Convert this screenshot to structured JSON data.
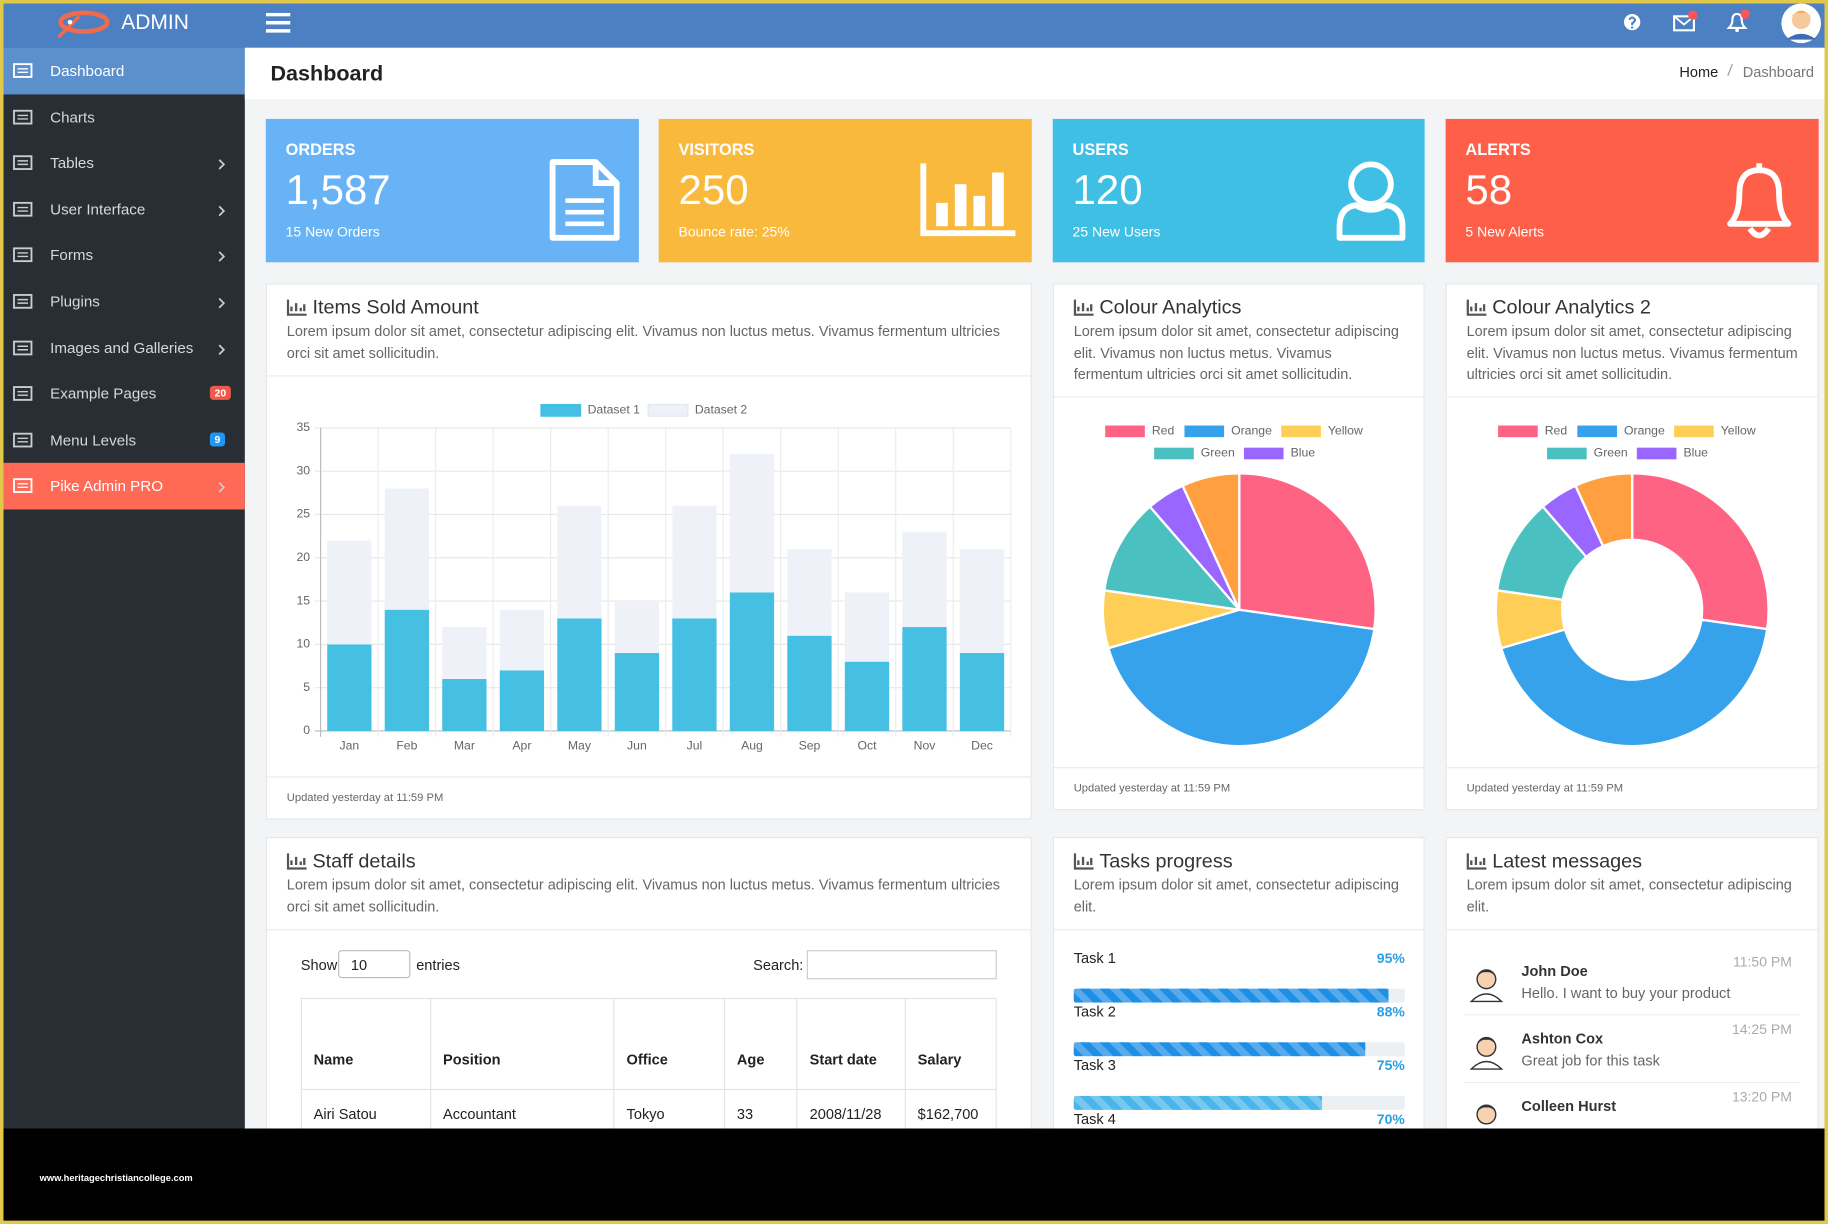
{
  "header": {
    "brand": "ADMIN"
  },
  "sidebar": {
    "items": [
      {
        "label": "Dashboard"
      },
      {
        "label": "Charts"
      },
      {
        "label": "Tables",
        "arrow": true
      },
      {
        "label": "User Interface",
        "arrow": true
      },
      {
        "label": "Forms",
        "arrow": true
      },
      {
        "label": "Plugins",
        "arrow": true
      },
      {
        "label": "Images and Galleries",
        "arrow": true
      },
      {
        "label": "Example Pages",
        "badge": 20,
        "badge_color": "#f0584a"
      },
      {
        "label": "Menu Levels",
        "badge": 9,
        "badge_color": "#2196f3"
      },
      {
        "label": "Pike Admin PRO",
        "arrow": true
      }
    ]
  },
  "page": {
    "title": "Dashboard",
    "breadcrumb": [
      "Home",
      "Dashboard"
    ]
  },
  "cards": [
    {
      "title": "ORDERS",
      "value": "1,587",
      "note": "15 New Orders",
      "color": "#68b3f5"
    },
    {
      "title": "VISITORS",
      "value": "250",
      "note": "Bounce rate: 25%",
      "color": "#f8b93c"
    },
    {
      "title": "USERS",
      "value": "120",
      "note": "25 New Users",
      "color": "#3fbfe4"
    },
    {
      "title": "ALERTS",
      "value": "58",
      "note": "5 New Alerts",
      "color": "#fd5f48"
    }
  ],
  "panels": [
    {
      "title": "Items Sold Amount",
      "text": "Lorem ipsum dolor sit amet, consectetur adipiscing elit. Vivamus non luctus metus. Vivamus fermentum ultricies orci sit amet sollicitudin.",
      "footer": "Updated yesterday at 11:59 PM"
    },
    {
      "title": "Colour Analytics",
      "text": "Lorem ipsum dolor sit amet, consectetur adipiscing elit. Vivamus non luctus metus. Vivamus fermentum ultricies orci sit amet sollicitudin.",
      "footer": "Updated yesterday at 11:59 PM"
    },
    {
      "title": "Colour Analytics 2",
      "text": "Lorem ipsum dolor sit amet, consectetur adipiscing elit. Vivamus non luctus metus. Vivamus fermentum ultricies orci sit amet sollicitudin.",
      "footer": "Updated yesterday at 11:59 PM"
    },
    {
      "title": "Staff details",
      "text": "Lorem ipsum dolor sit amet, consectetur adipiscing elit. Vivamus non luctus metus. Vivamus fermentum ultricies orci sit amet sollicitudin."
    },
    {
      "title": "Tasks progress",
      "text": "Lorem ipsum dolor sit amet, consectetur adipiscing elit."
    },
    {
      "title": "Latest messages",
      "text": "Lorem ipsum dolor sit amet, consectetur adipiscing elit."
    }
  ],
  "chart_data": [
    {
      "type": "bar",
      "stacked": true,
      "categories": [
        "Jan",
        "Feb",
        "Mar",
        "Apr",
        "May",
        "Jun",
        "Jul",
        "Aug",
        "Sep",
        "Oct",
        "Nov",
        "Dec"
      ],
      "series": [
        {
          "name": "Dataset 1",
          "color": "#45bfe2",
          "values": [
            10,
            14,
            6,
            7,
            13,
            9,
            13,
            16,
            11,
            8,
            12,
            9
          ]
        },
        {
          "name": "Dataset 2",
          "color": "#eef2f8",
          "values": [
            12,
            14,
            6,
            7,
            13,
            6,
            13,
            16,
            10,
            8,
            11,
            12
          ]
        }
      ],
      "ylim": [
        0,
        35
      ],
      "yticks": [
        0,
        5,
        10,
        15,
        20,
        25,
        30,
        35
      ],
      "grid": true,
      "legend": "top"
    },
    {
      "type": "pie",
      "categories": [
        "Red",
        "Orange",
        "Yellow",
        "Green",
        "Blue",
        null
      ],
      "values": [
        12,
        19,
        3,
        5,
        2,
        3
      ],
      "colors": [
        "#ff6384",
        "#36a2eb",
        "#ffce56",
        "#4bc0c0",
        "#9966ff",
        "#ff9f40"
      ],
      "legend": "top"
    },
    {
      "type": "doughnut",
      "categories": [
        "Red",
        "Orange",
        "Yellow",
        "Green",
        "Blue",
        null
      ],
      "values": [
        12,
        19,
        3,
        5,
        2,
        3
      ],
      "colors": [
        "#ff6384",
        "#36a2eb",
        "#ffce56",
        "#4bc0c0",
        "#9966ff",
        "#ff9f40"
      ],
      "legend": "top"
    }
  ],
  "staff": {
    "show": "Show",
    "length": "10",
    "entries": "entries",
    "search": "Search:",
    "columns": [
      "Name",
      "Position",
      "Office",
      "Age",
      "Start date",
      "Salary"
    ],
    "rows": [
      [
        "Airi Satou",
        "Accountant",
        "Tokyo",
        "33",
        "2008/11/28",
        "$162,700"
      ]
    ]
  },
  "tasks": {
    "names": [
      "Task 1",
      "Task 2",
      "Task 3",
      "Task 4"
    ],
    "values": [
      95,
      88,
      75,
      70
    ],
    "value_labels": [
      "95%",
      "88%",
      "75%",
      "70%"
    ],
    "colors": [
      "#1f8fe6",
      "#1f8fe6",
      "#4ab5ea",
      "#4ab5ea"
    ]
  },
  "messages": [
    {
      "name": "John Doe",
      "text": "Hello. I want to buy your product",
      "time": "11:50 PM"
    },
    {
      "name": "Ashton Cox",
      "text": "Great job for this task",
      "time": "14:25 PM"
    },
    {
      "name": "Colleen Hurst",
      "time": "13:20 PM"
    }
  ],
  "footer": {
    "watermark": "www.heritagechristiancollege.com"
  }
}
